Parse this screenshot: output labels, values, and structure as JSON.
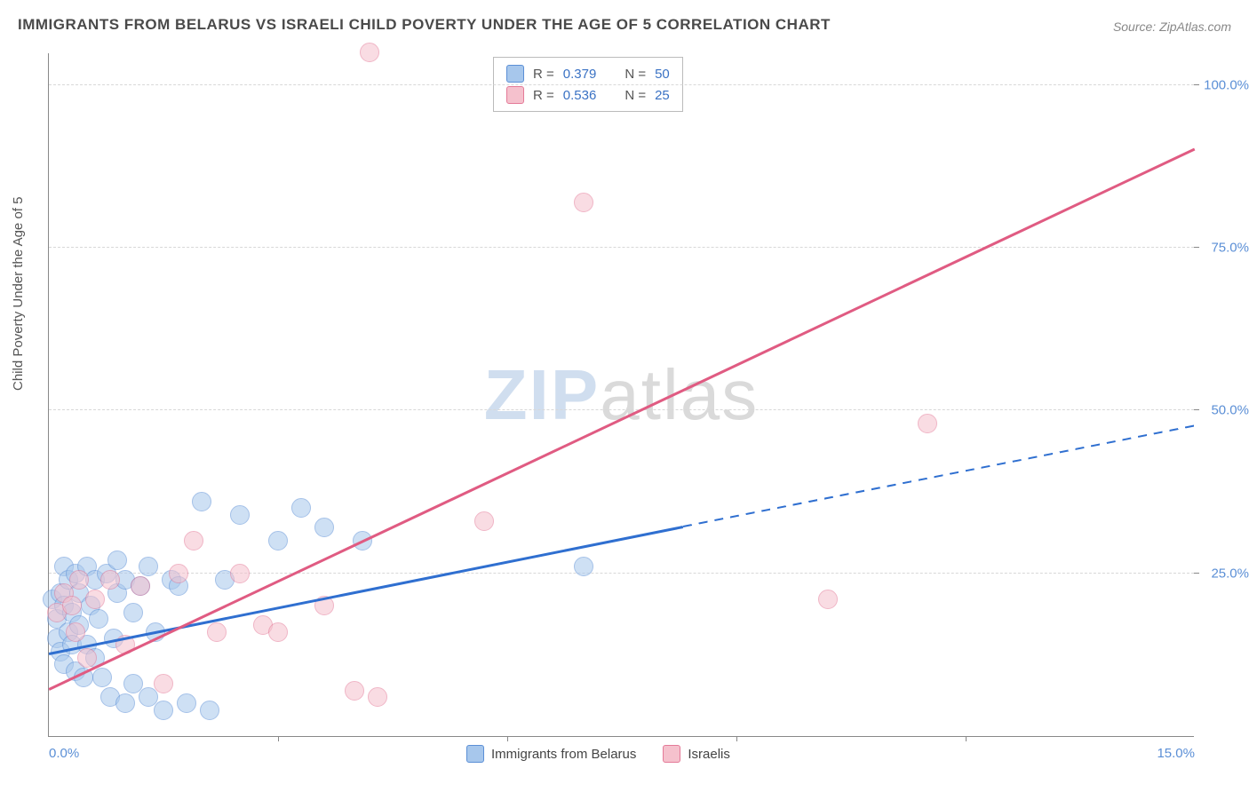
{
  "title": "IMMIGRANTS FROM BELARUS VS ISRAELI CHILD POVERTY UNDER THE AGE OF 5 CORRELATION CHART",
  "source": "Source: ZipAtlas.com",
  "watermark": {
    "part1": "ZIP",
    "part2": "atlas"
  },
  "yaxis": {
    "label": "Child Poverty Under the Age of 5"
  },
  "chart": {
    "type": "scatter",
    "xlim": [
      0,
      15
    ],
    "ylim": [
      0,
      105
    ],
    "xticks": [
      {
        "value": 0,
        "label": "0.0%"
      },
      {
        "value": 15,
        "label": "15.0%"
      }
    ],
    "yticks": [
      {
        "value": 25,
        "label": "25.0%"
      },
      {
        "value": 50,
        "label": "50.0%"
      },
      {
        "value": 75,
        "label": "75.0%"
      },
      {
        "value": 100,
        "label": "100.0%"
      }
    ],
    "x_minor_ticks": [
      3,
      6,
      9,
      12
    ],
    "background_color": "#ffffff",
    "grid_color": "#d8d8d8",
    "axis_color": "#888888",
    "tick_label_color": "#5b8fd6",
    "marker_radius": 11,
    "marker_opacity": 0.55,
    "series": [
      {
        "name": "Immigrants from Belarus",
        "color_fill": "#a7c7ec",
        "color_stroke": "#5b8fd6",
        "R": "0.379",
        "N": "50",
        "trend": {
          "x1": 0,
          "y1": 12.5,
          "x2": 8.3,
          "y2": 32,
          "color": "#2f6fd0",
          "width": 2.5,
          "dash": false
        },
        "trend_ext": {
          "x1": 8.3,
          "y1": 32,
          "x2": 15,
          "y2": 47.5,
          "color": "#2f6fd0",
          "width": 2,
          "dash": true
        },
        "points": [
          [
            0.05,
            21
          ],
          [
            0.1,
            18
          ],
          [
            0.1,
            15
          ],
          [
            0.15,
            22
          ],
          [
            0.15,
            13
          ],
          [
            0.2,
            26
          ],
          [
            0.2,
            20
          ],
          [
            0.2,
            11
          ],
          [
            0.25,
            16
          ],
          [
            0.25,
            24
          ],
          [
            0.3,
            14
          ],
          [
            0.3,
            19
          ],
          [
            0.35,
            25
          ],
          [
            0.35,
            10
          ],
          [
            0.4,
            22
          ],
          [
            0.4,
            17
          ],
          [
            0.45,
            9
          ],
          [
            0.5,
            26
          ],
          [
            0.5,
            14
          ],
          [
            0.55,
            20
          ],
          [
            0.6,
            24
          ],
          [
            0.6,
            12
          ],
          [
            0.65,
            18
          ],
          [
            0.7,
            9
          ],
          [
            0.75,
            25
          ],
          [
            0.8,
            6
          ],
          [
            0.85,
            15
          ],
          [
            0.9,
            22
          ],
          [
            0.9,
            27
          ],
          [
            1.0,
            5
          ],
          [
            1.0,
            24
          ],
          [
            1.1,
            19
          ],
          [
            1.1,
            8
          ],
          [
            1.2,
            23
          ],
          [
            1.3,
            26
          ],
          [
            1.3,
            6
          ],
          [
            1.4,
            16
          ],
          [
            1.5,
            4
          ],
          [
            1.6,
            24
          ],
          [
            1.7,
            23
          ],
          [
            1.8,
            5
          ],
          [
            2.0,
            36
          ],
          [
            2.1,
            4
          ],
          [
            2.3,
            24
          ],
          [
            2.5,
            34
          ],
          [
            3.0,
            30
          ],
          [
            3.3,
            35
          ],
          [
            3.6,
            32
          ],
          [
            4.1,
            30
          ],
          [
            7.0,
            26
          ]
        ]
      },
      {
        "name": "Israelis",
        "color_fill": "#f5c1cd",
        "color_stroke": "#e47a98",
        "R": "0.536",
        "N": "25",
        "trend": {
          "x1": 0,
          "y1": 7,
          "x2": 15,
          "y2": 90,
          "color": "#e05b82",
          "width": 2.5,
          "dash": false
        },
        "points": [
          [
            0.1,
            19
          ],
          [
            0.2,
            22
          ],
          [
            0.3,
            20
          ],
          [
            0.35,
            16
          ],
          [
            0.4,
            24
          ],
          [
            0.5,
            12
          ],
          [
            0.6,
            21
          ],
          [
            0.8,
            24
          ],
          [
            1.0,
            14
          ],
          [
            1.2,
            23
          ],
          [
            1.5,
            8
          ],
          [
            1.7,
            25
          ],
          [
            1.9,
            30
          ],
          [
            2.2,
            16
          ],
          [
            2.5,
            25
          ],
          [
            2.8,
            17
          ],
          [
            3.0,
            16
          ],
          [
            3.6,
            20
          ],
          [
            4.0,
            7
          ],
          [
            4.2,
            105
          ],
          [
            4.3,
            6
          ],
          [
            5.7,
            33
          ],
          [
            7.0,
            82
          ],
          [
            10.2,
            21
          ],
          [
            11.5,
            48
          ]
        ]
      }
    ],
    "legend_top": {
      "R_label": "R =",
      "N_label": "N ="
    },
    "legend_bottom": [
      {
        "label": "Immigrants from Belarus",
        "fill": "#a7c7ec",
        "stroke": "#5b8fd6"
      },
      {
        "label": "Israelis",
        "fill": "#f5c1cd",
        "stroke": "#e47a98"
      }
    ]
  }
}
